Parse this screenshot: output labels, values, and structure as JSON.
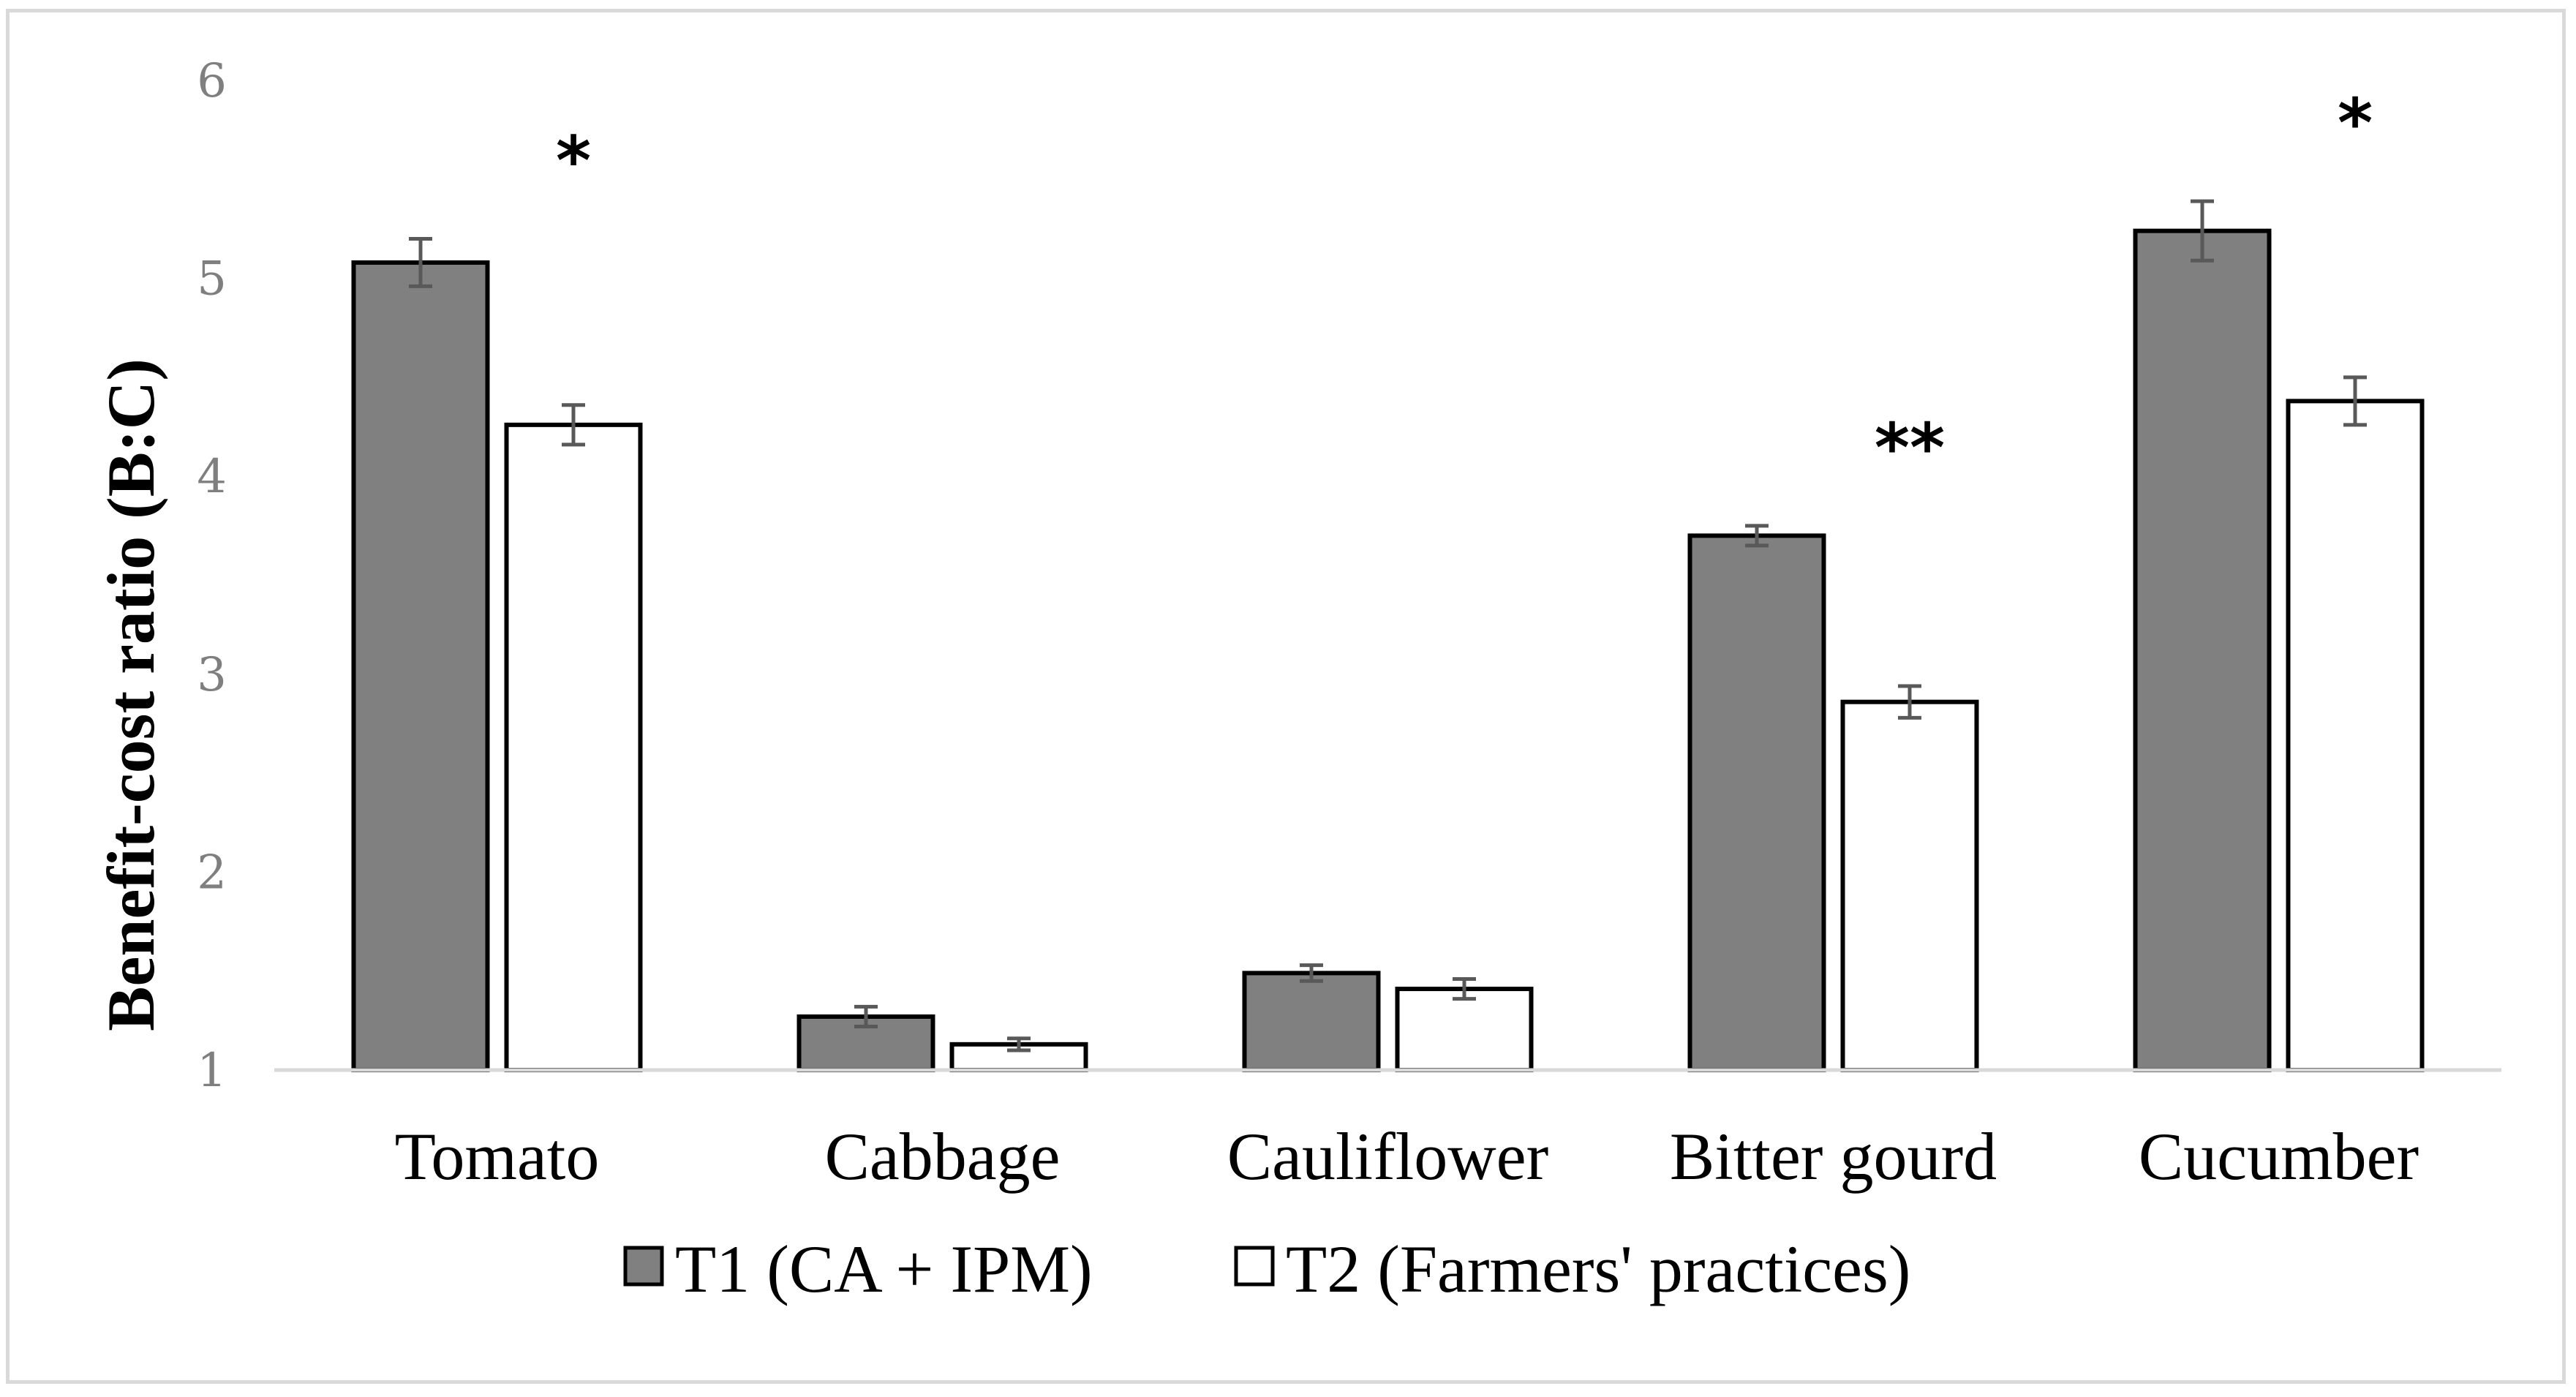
{
  "chart_data": {
    "type": "bar",
    "title": "",
    "xlabel": "",
    "ylabel": "Benefit-cost ratio (B:C)",
    "ylim": [
      1,
      6
    ],
    "yticks": [
      1,
      2,
      3,
      4,
      5,
      6
    ],
    "grid": false,
    "legend_position": "bottom",
    "categories": [
      "Tomato",
      "Cabbage",
      "Cauliflower",
      "Bitter gourd",
      "Cucumber"
    ],
    "series": [
      {
        "name": "T1 (CA + IPM)",
        "color": "#808080",
        "values": [
          5.08,
          1.27,
          1.49,
          3.7,
          5.24
        ],
        "errors": [
          0.12,
          0.05,
          0.04,
          0.05,
          0.15
        ]
      },
      {
        "name": "T2 (Farmers' practices)",
        "color": "#ffffff",
        "values": [
          4.26,
          1.13,
          1.41,
          2.86,
          4.38
        ],
        "errors": [
          0.1,
          0.03,
          0.05,
          0.08,
          0.12
        ]
      }
    ],
    "significance": [
      "*",
      "",
      "",
      "**",
      "*"
    ]
  }
}
